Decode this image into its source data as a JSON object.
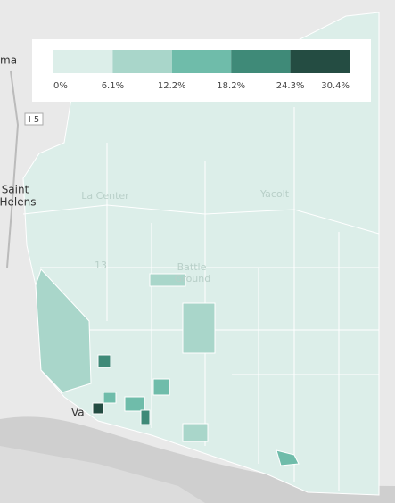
{
  "legend": {
    "colors": [
      "#dceee9",
      "#a9d6ca",
      "#6fbcaa",
      "#3f8a78",
      "#244c42"
    ],
    "ticks": [
      "0%",
      "6.1%",
      "12.2%",
      "18.2%",
      "24.3%",
      "30.4%"
    ]
  },
  "map": {
    "labels": [
      "ma",
      "I 5",
      "Saint",
      "Helens",
      "La Center",
      "Yacolt",
      "13",
      "Battle",
      "Ground",
      "Va"
    ]
  }
}
